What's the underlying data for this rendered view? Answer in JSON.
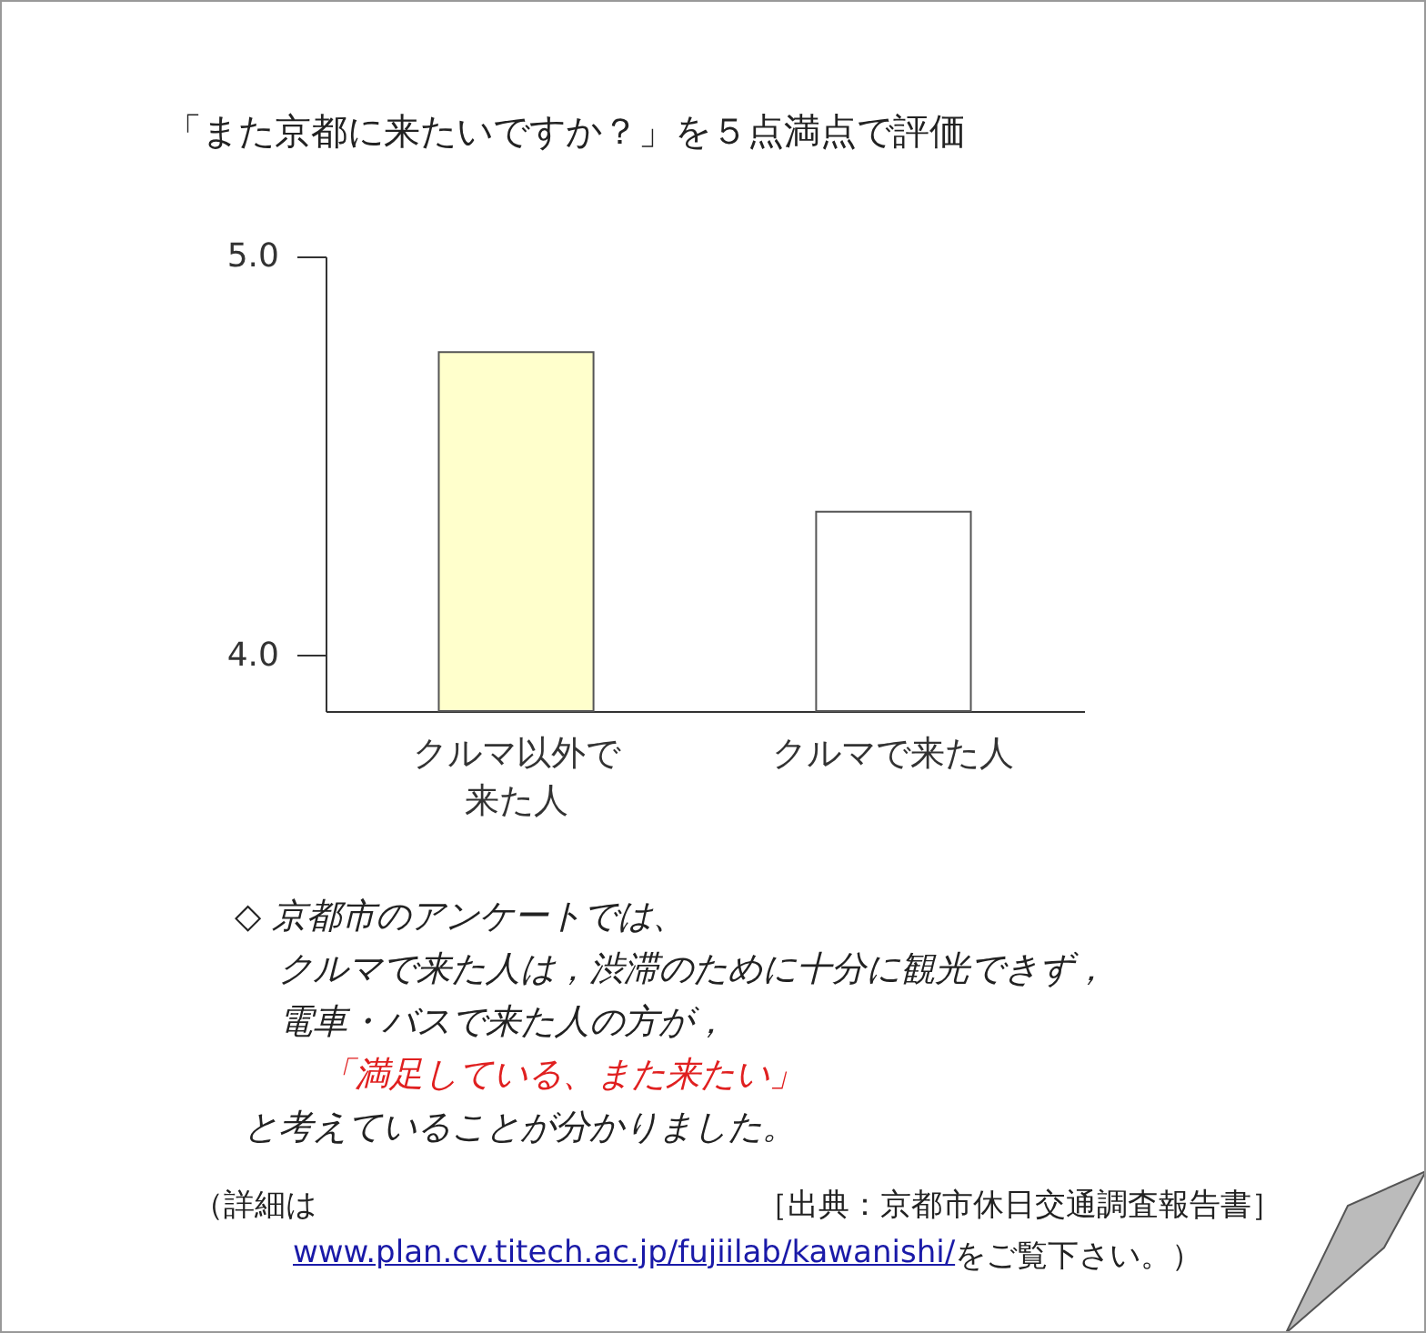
{
  "chart_data": {
    "type": "bar",
    "title": "「また京都に来たいですか？」を５点満点で評価",
    "categories": [
      "クルマ以外で来た人",
      "クルマで来た人"
    ],
    "values": [
      4.76,
      4.36
    ],
    "colors": [
      "#ffffcc",
      "#ffffff"
    ],
    "ylim": [
      3.86,
      5.0
    ],
    "yticks": [
      {
        "value": 4,
        "label": "4.0"
      },
      {
        "value": 5,
        "label": "5.0"
      }
    ],
    "annotations": [
      "◇ 京都市のアンケートでは、",
      "クルマで来た人は，渋滞のために十分に観光できず，",
      "電車・バスで来た人の方が，",
      "「満足している、また来たい」",
      "と考えていることが分かりました。",
      "（詳細は",
      "［出典：京都市休日交通調査報告書］",
      "www.plan.cv.titech.ac.jp/fujiilab/kawanishi/",
      "をご覧下さい。）"
    ]
  }
}
